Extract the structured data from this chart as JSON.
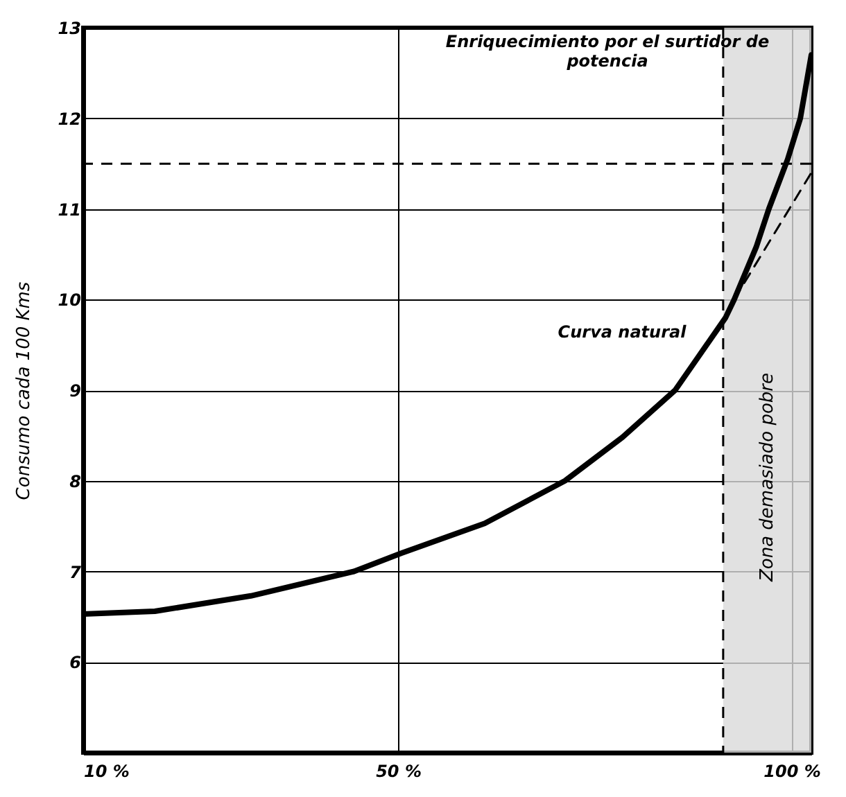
{
  "chart_data": {
    "type": "line",
    "ylabel": "Consumo cada 100 Kms",
    "xlim": [
      10,
      102.5
    ],
    "xticks": [
      {
        "value": 10,
        "label": "10 %"
      },
      {
        "value": 50,
        "label": "50 %"
      },
      {
        "value": 100,
        "label": "100 %"
      }
    ],
    "ylim": [
      5,
      13
    ],
    "yticks": [
      6,
      7,
      8,
      9,
      10,
      11,
      12,
      13
    ],
    "grid": true,
    "marker": "none",
    "series": [
      {
        "color": "#000000",
        "line_style": "solid",
        "x": [
          10,
          19.1,
          31.3,
          44.4,
          50.4,
          61,
          71.2,
          78.5,
          85.2,
          91.6,
          92.7,
          95.5,
          97.1,
          99.5,
          101.1,
          102.5
        ],
        "values": [
          6.53,
          6.56,
          6.73,
          7.0,
          7.2,
          7.53,
          8.0,
          8.48,
          9.0,
          9.8,
          10.0,
          10.58,
          11.0,
          11.55,
          12.0,
          12.7
        ]
      },
      {
        "color": "#000000",
        "line_style": "dashed",
        "x": [
          92.7,
          102.5
        ],
        "values": [
          10.0,
          11.4
        ]
      }
    ],
    "ref_lines": [
      {
        "axis": "y",
        "value": 11.5,
        "color": "#000000",
        "line_style": "dashed"
      },
      {
        "axis": "x",
        "value": 91.3,
        "color": "#000000",
        "line_style": "dashed"
      }
    ],
    "bands": [
      {
        "axis": "x",
        "from": 91.3,
        "to": 102.5,
        "label": "Zona demasiado pobre",
        "color": "#d9d9d9"
      }
    ],
    "annotations": [
      "Enriquecimiento por el surtidor de potencia",
      "Curva natural"
    ]
  }
}
